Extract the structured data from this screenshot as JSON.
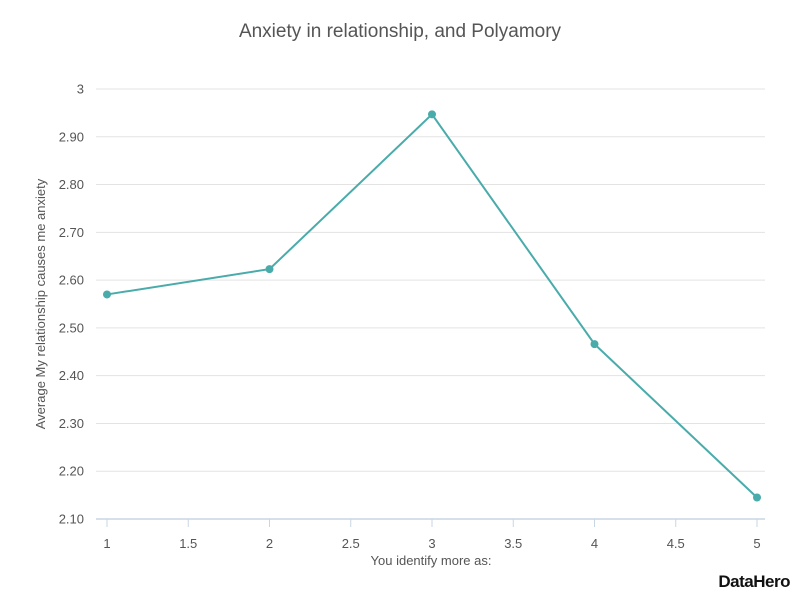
{
  "chart_data": {
    "type": "line",
    "title": "Anxiety in relationship, and Polyamory",
    "xlabel": "You identify more as:",
    "ylabel": "Average My relationship causes me anxiety",
    "x": [
      1,
      2,
      3,
      4,
      5
    ],
    "series": [
      {
        "values": [
          2.57,
          2.623,
          2.947,
          2.466,
          2.145
        ]
      }
    ],
    "xlim": [
      1,
      5
    ],
    "ylim": [
      2.1,
      3.0
    ],
    "x_ticks": [
      1,
      1.5,
      2,
      2.5,
      3,
      3.5,
      4,
      4.5,
      5
    ],
    "x_tick_labels": [
      "1",
      "1.5",
      "2",
      "2.5",
      "3",
      "3.5",
      "4",
      "4.5",
      "5"
    ],
    "y_ticks": [
      2.1,
      2.2,
      2.3,
      2.4,
      2.5,
      2.6,
      2.7,
      2.8,
      2.9,
      3.0
    ],
    "y_tick_labels": [
      "2.10",
      "2.20",
      "2.30",
      "2.40",
      "2.50",
      "2.60",
      "2.70",
      "2.80",
      "2.90",
      "3"
    ],
    "grid": true,
    "legend": "none",
    "line_color": "#4aabab"
  },
  "watermark": "DataHero"
}
